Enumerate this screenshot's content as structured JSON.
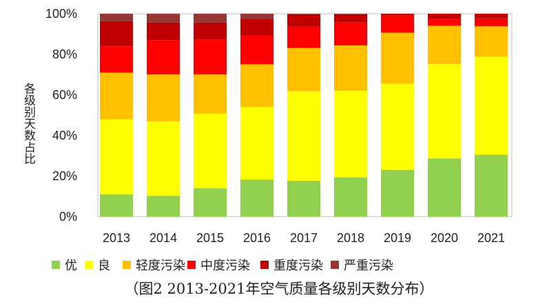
{
  "chart_data": {
    "type": "bar",
    "stacked": true,
    "title": "",
    "caption": "（图2 2013-2021年空气质量各级别天数分布）",
    "xlabel": "",
    "ylabel": "各级别天数占比",
    "ylim": [
      0,
      100
    ],
    "yticks": [
      "0%",
      "20%",
      "40%",
      "60%",
      "80%",
      "100%"
    ],
    "categories": [
      "2013",
      "2014",
      "2015",
      "2016",
      "2017",
      "2018",
      "2019",
      "2020",
      "2021"
    ],
    "legend_position": "bottom",
    "series": [
      {
        "name": "优",
        "color": "#92d050",
        "values": [
          11.0,
          10.3,
          13.9,
          18.3,
          17.7,
          19.3,
          23.1,
          28.7,
          30.5
        ]
      },
      {
        "name": "良",
        "color": "#ffff00",
        "values": [
          37.0,
          36.6,
          36.8,
          35.7,
          44.1,
          42.7,
          42.4,
          46.6,
          48.3
        ]
      },
      {
        "name": "轻度污染",
        "color": "#ffc000",
        "values": [
          23.0,
          23.2,
          19.4,
          21.1,
          21.3,
          22.4,
          25.2,
          18.8,
          15.0
        ]
      },
      {
        "name": "中度污染",
        "color": "#ff0000",
        "values": [
          13.0,
          16.9,
          17.1,
          14.2,
          10.5,
          11.3,
          8.4,
          3.3,
          3.9
        ]
      },
      {
        "name": "重度污染",
        "color": "#c00000",
        "values": [
          12.3,
          8.7,
          8.5,
          8.2,
          6.1,
          4.0,
          0.9,
          2.6,
          2.3
        ]
      },
      {
        "name": "严重污染",
        "color": "#953735",
        "values": [
          3.7,
          4.3,
          4.3,
          2.5,
          0.3,
          0.3,
          0.0,
          0.0,
          0.0
        ]
      }
    ]
  }
}
